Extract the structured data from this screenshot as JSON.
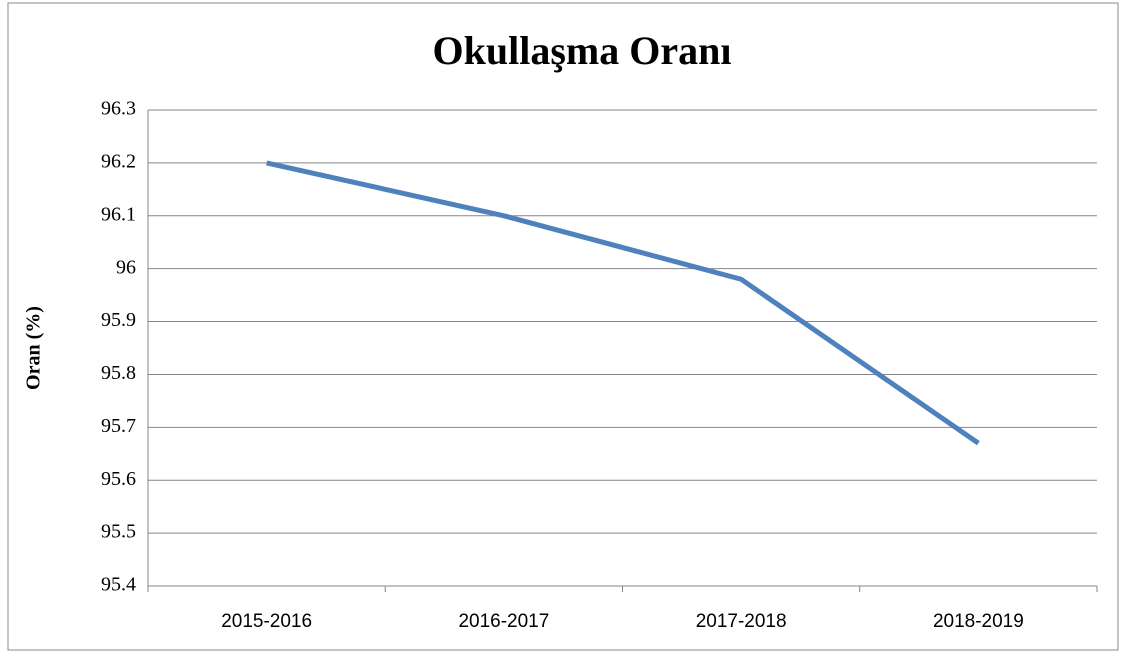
{
  "chart_data": {
    "type": "line",
    "title": "Okullaşma Oranı",
    "y_label": "Oran (%)",
    "categories": [
      "2015-2016",
      "2016-2017",
      "2017-2018",
      "2018-2019"
    ],
    "series": [
      {
        "name": "Okullaşma Oranı",
        "color": "#4f81bd",
        "values": [
          96.2,
          96.1,
          95.98,
          95.67
        ]
      }
    ],
    "ylim": [
      95.4,
      96.3
    ],
    "yticks": [
      95.4,
      95.5,
      95.6,
      95.7,
      95.8,
      95.9,
      96,
      96.1,
      96.2,
      96.3
    ],
    "grid": true
  }
}
